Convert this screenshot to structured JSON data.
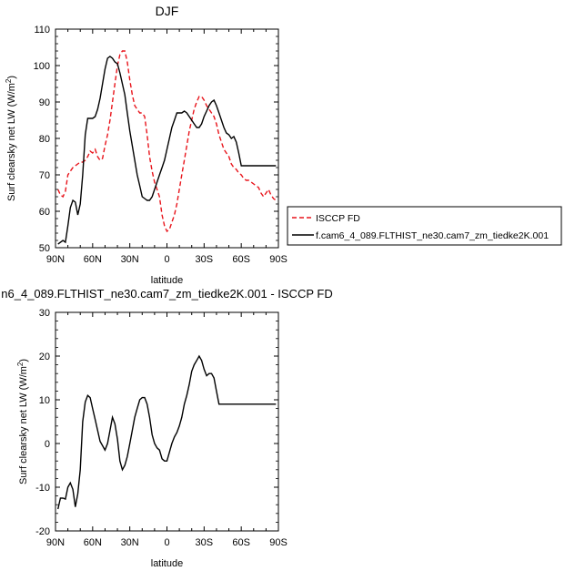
{
  "chart_data": [
    {
      "type": "line",
      "title": "DJF",
      "ylabel": "Surf clearsky net LW (W/m",
      "ylabel_sup": "2",
      "ylabel_close": ")",
      "xlabel": "latitude",
      "xlim": [
        -90,
        90
      ],
      "ylim": [
        50,
        110
      ],
      "x_ticks": [
        -90,
        -60,
        -30,
        0,
        30,
        60,
        90
      ],
      "x_tick_labels": [
        "90N",
        "60N",
        "30N",
        "0",
        "30S",
        "60S",
        "90S"
      ],
      "y_ticks": [
        50,
        60,
        70,
        80,
        90,
        100,
        110
      ],
      "y_tick_labels": [
        "50",
        "60",
        "70",
        "80",
        "90",
        "100",
        "110"
      ],
      "legend_position": "right",
      "series": [
        {
          "name": "ISCCP FD",
          "color": "#e8141b",
          "dashed": true,
          "x": [
            -88,
            -86,
            -84,
            -82,
            -80,
            -78,
            -76,
            -74,
            -72,
            -70,
            -68,
            -66,
            -64,
            -62,
            -60,
            -58,
            -56,
            -54,
            -52,
            -50,
            -48,
            -46,
            -44,
            -42,
            -40,
            -38,
            -36,
            -34,
            -32,
            -30,
            -28,
            -26,
            -24,
            -22,
            -20,
            -18,
            -16,
            -14,
            -12,
            -10,
            -8,
            -6,
            -4,
            -2,
            0,
            2,
            4,
            6,
            8,
            10,
            12,
            14,
            16,
            18,
            20,
            22,
            24,
            26,
            28,
            30,
            32,
            34,
            36,
            38,
            40,
            42,
            44,
            46,
            48,
            50,
            52,
            54,
            56,
            58,
            60,
            62,
            64,
            66,
            68,
            70,
            72,
            74,
            76,
            78,
            80,
            82,
            84,
            86,
            88
          ],
          "y": [
            66,
            64.5,
            64,
            65.5,
            70,
            71,
            72,
            72.5,
            73,
            73.5,
            73.5,
            74,
            75,
            76.5,
            76,
            77,
            75,
            74,
            74.5,
            78,
            81,
            85,
            90,
            95,
            100,
            103,
            104,
            104,
            101,
            96,
            92,
            89,
            88,
            87,
            87,
            86,
            81,
            75,
            71,
            68,
            66,
            64,
            59,
            56,
            54.5,
            55,
            57,
            59,
            62,
            66,
            70,
            74,
            78,
            82,
            85,
            88,
            90,
            91.5,
            91.5,
            90.5,
            89,
            88,
            87,
            86,
            84,
            81,
            79,
            77,
            76,
            75,
            73,
            72,
            71.5,
            70.5,
            70,
            69,
            68.5,
            68.5,
            68,
            67.5,
            67,
            66.5,
            65,
            64,
            65,
            66,
            64.5,
            63.5,
            63
          ]
        },
        {
          "name": "f.cam6_4_089.FLTHIST_ne30.cam7_zm_tiedke2K.001",
          "color": "#000000",
          "dashed": false,
          "x": [
            -88,
            -86,
            -84,
            -82,
            -80,
            -78,
            -76,
            -74,
            -72,
            -70,
            -68,
            -66,
            -64,
            -62,
            -60,
            -58,
            -56,
            -54,
            -52,
            -50,
            -48,
            -46,
            -44,
            -42,
            -40,
            -38,
            -36,
            -34,
            -32,
            -30,
            -28,
            -26,
            -24,
            -22,
            -20,
            -18,
            -16,
            -14,
            -12,
            -10,
            -8,
            -6,
            -4,
            -2,
            0,
            2,
            4,
            6,
            8,
            10,
            12,
            14,
            16,
            18,
            20,
            22,
            24,
            26,
            28,
            30,
            32,
            34,
            36,
            38,
            40,
            42,
            44,
            46,
            48,
            50,
            52,
            54,
            56,
            58,
            60,
            62,
            64,
            66,
            68,
            70,
            72,
            74,
            76,
            78,
            80,
            82,
            84,
            86,
            88
          ],
          "y": [
            51,
            51.5,
            52,
            51.5,
            56,
            61,
            63,
            62.5,
            59,
            62,
            70,
            81,
            85.5,
            85.5,
            85.5,
            86,
            88,
            91,
            95,
            99,
            102,
            102.5,
            102,
            101,
            100.5,
            98,
            95,
            92,
            87,
            82,
            78,
            74,
            70,
            67,
            64,
            63.5,
            63,
            63,
            64,
            66,
            68,
            70,
            72,
            74,
            77,
            80,
            83,
            85,
            87,
            87,
            87,
            87.5,
            87,
            86,
            85,
            84,
            83,
            83,
            84,
            86,
            87.5,
            89,
            90,
            90.5,
            89,
            87,
            85,
            83,
            81.5,
            81,
            80,
            80.5,
            79,
            76,
            72.5,
            72.5,
            72.5,
            72.5,
            72.5,
            72.5,
            72.5,
            72.5,
            72.5,
            72.5,
            72.5,
            72.5,
            72.5,
            72.5,
            72.5
          ]
        }
      ]
    },
    {
      "type": "line",
      "title": "n6_4_089.FLTHIST_ne30.cam7_zm_tiedke2K.001 - ISCCP FD",
      "ylabel": "Surf clearsky net LW (W/m",
      "ylabel_sup": "2",
      "ylabel_close": ")",
      "xlabel": "latitude",
      "xlim": [
        -90,
        90
      ],
      "ylim": [
        -20,
        30
      ],
      "x_ticks": [
        -90,
        -60,
        -30,
        0,
        30,
        60,
        90
      ],
      "x_tick_labels": [
        "90N",
        "60N",
        "30N",
        "0",
        "30S",
        "60S",
        "90S"
      ],
      "y_ticks": [
        -20,
        -10,
        0,
        10,
        20,
        30
      ],
      "y_tick_labels": [
        "-20",
        "-10",
        "0",
        "10",
        "20",
        "30"
      ],
      "series": [
        {
          "color": "#000000",
          "dashed": false,
          "x": [
            -88,
            -86,
            -84,
            -82,
            -80,
            -78,
            -76,
            -74,
            -72,
            -70,
            -68,
            -66,
            -64,
            -62,
            -60,
            -58,
            -56,
            -54,
            -52,
            -50,
            -48,
            -46,
            -44,
            -42,
            -40,
            -38,
            -36,
            -34,
            -32,
            -30,
            -28,
            -26,
            -24,
            -22,
            -20,
            -18,
            -16,
            -14,
            -12,
            -10,
            -8,
            -6,
            -4,
            -2,
            0,
            2,
            4,
            6,
            8,
            10,
            12,
            14,
            16,
            18,
            20,
            22,
            24,
            26,
            28,
            30,
            32,
            34,
            36,
            38,
            40,
            42,
            44,
            46,
            48,
            50,
            52,
            54,
            56,
            58,
            60,
            62,
            64,
            66,
            68,
            70,
            72,
            74,
            76,
            78,
            80,
            82,
            84,
            86,
            88
          ],
          "y": [
            -15,
            -12.5,
            -12.5,
            -12.7,
            -10,
            -9,
            -10.5,
            -14.5,
            -11.5,
            -6,
            5,
            9.5,
            11,
            10.5,
            8,
            5.5,
            3,
            0.5,
            -0.5,
            -1.5,
            0,
            3,
            6,
            4.5,
            1,
            -4,
            -6,
            -5,
            -3,
            0,
            3,
            6,
            8,
            10,
            10.5,
            10.5,
            9,
            6,
            2,
            0,
            -1,
            -1.5,
            -3.5,
            -4,
            -4,
            -2,
            0,
            1.5,
            2.5,
            4,
            6,
            9,
            11,
            13.5,
            16.5,
            18,
            19,
            20,
            19,
            17,
            15.5,
            16,
            16,
            15,
            12,
            9,
            9,
            9,
            9,
            9,
            9,
            9,
            9,
            9,
            9,
            9,
            9,
            9,
            9,
            9,
            9,
            9,
            9,
            9,
            9,
            9,
            9,
            9,
            9
          ]
        }
      ]
    }
  ]
}
